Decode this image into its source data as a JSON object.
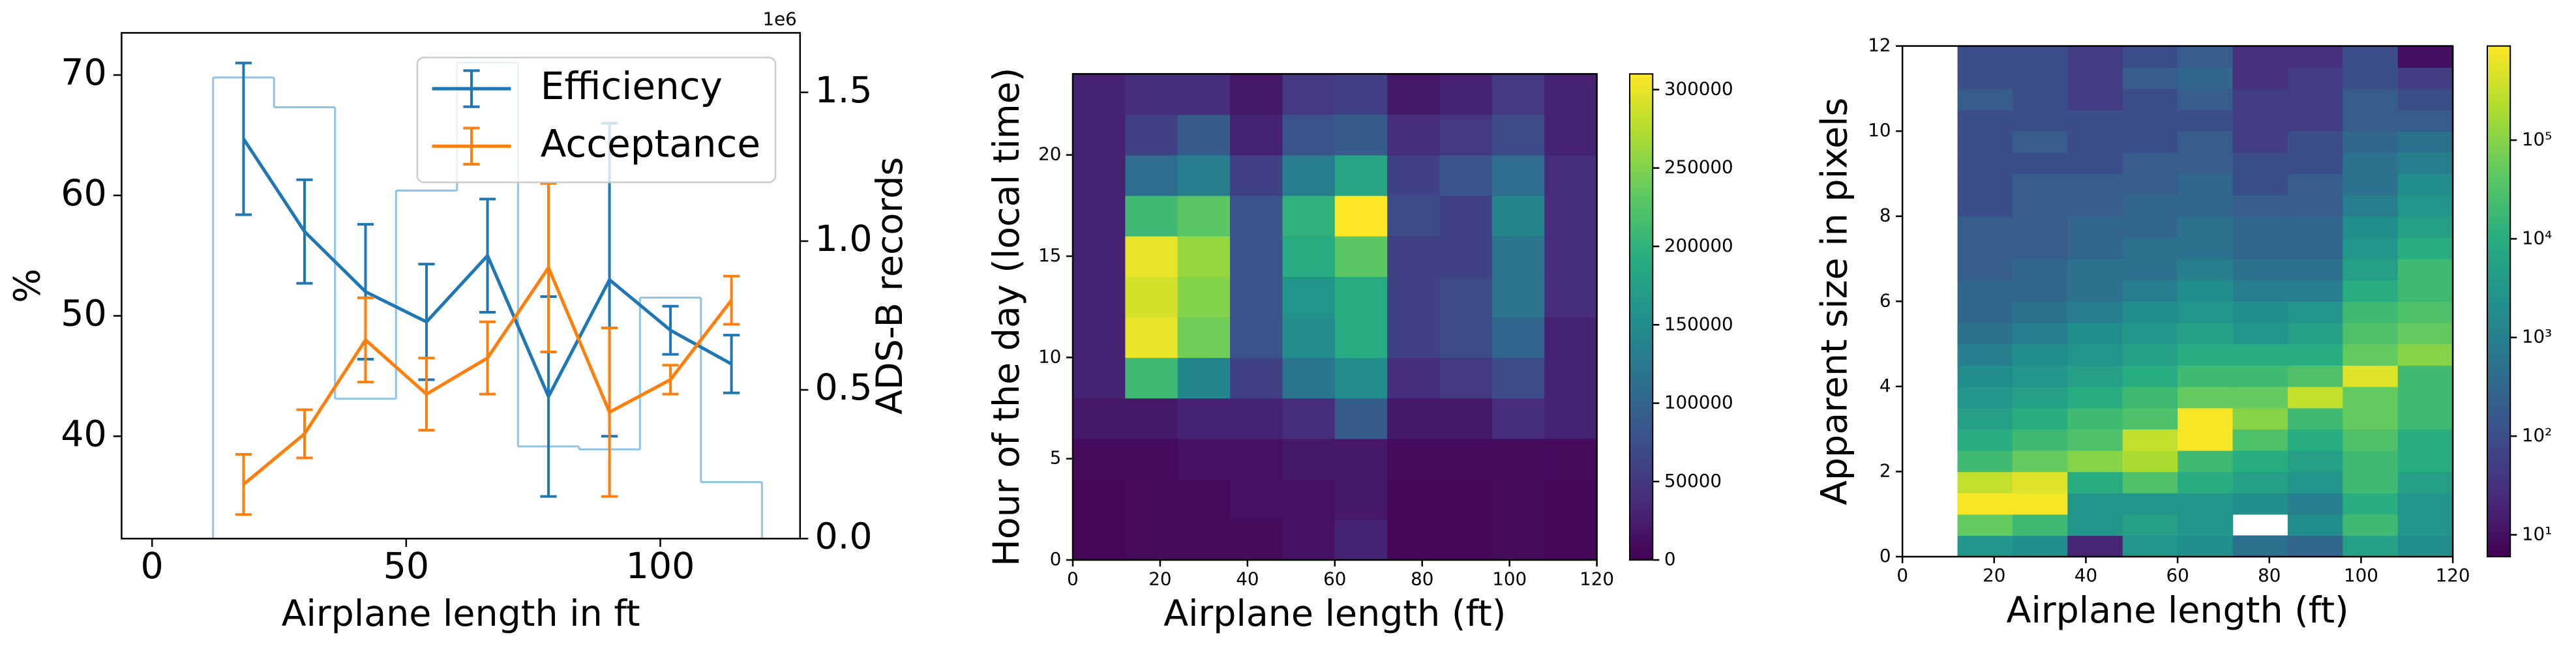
{
  "chart_data": [
    {
      "type": "errorbar-line",
      "xlabel": "Airplane length in ft",
      "ylabel": "%",
      "y2label": "ADS-B records",
      "y2_offset_label": "1e6",
      "xlim": [
        -6,
        127.5
      ],
      "ylim": [
        31.5,
        73.5
      ],
      "y2lim": [
        0,
        1.7
      ],
      "xticks": [
        0,
        50,
        100
      ],
      "yticks": [
        40,
        50,
        60,
        70
      ],
      "y2ticks": [
        {
          "value": 0,
          "label": "0.0"
        },
        {
          "value": 0.5,
          "label": "0.5"
        },
        {
          "value": 1,
          "label": "1.0"
        },
        {
          "value": 1.5,
          "label": "1.5"
        }
      ],
      "x": [
        18,
        30,
        42,
        54,
        66,
        78,
        90,
        102,
        114
      ],
      "series": [
        {
          "name": "Efficiency",
          "color": "#1f77b4",
          "values": [
            64.7,
            57,
            52,
            49.5,
            55,
            43.3,
            53,
            48.8,
            46
          ],
          "errors": [
            6.3,
            4.3,
            5.6,
            4.8,
            4.7,
            8.3,
            13,
            2,
            2.4
          ]
        },
        {
          "name": "Acceptance",
          "color": "#ff7f0e",
          "values": [
            36,
            40.2,
            48,
            43.5,
            46.5,
            54,
            42,
            44.7,
            51.3
          ],
          "errors": [
            2.5,
            2,
            3.5,
            3,
            3,
            7,
            7,
            1.2,
            2
          ]
        }
      ],
      "histogram": {
        "axis": "y2",
        "color": "#8fc3e6",
        "bins": [
          12,
          24,
          36,
          48,
          60,
          72,
          84,
          96,
          108,
          120
        ],
        "values": [
          1.55,
          1.45,
          0.47,
          1.17,
          1.6,
          0.31,
          0.3,
          0.81,
          0.19
        ]
      },
      "legend": "upper right"
    },
    {
      "type": "heatmap",
      "xlabel": "Airplane length (ft)",
      "ylabel": "Hour of the day (local time)",
      "xlim": [
        0,
        120
      ],
      "ylim": [
        0,
        24
      ],
      "xticks": [
        0,
        20,
        40,
        60,
        80,
        100,
        120
      ],
      "yticks": [
        0,
        5,
        10,
        15,
        20
      ],
      "xbins": [
        0,
        12,
        24,
        36,
        48,
        60,
        72,
        84,
        96,
        108,
        120
      ],
      "ybins": [
        0,
        2,
        4,
        6,
        8,
        10,
        12,
        14,
        16,
        18,
        20,
        22,
        24
      ],
      "colormap": "viridis",
      "colorbar": {
        "scale": "linear",
        "lim": [
          0,
          310000
        ],
        "ticks": [
          0,
          50000,
          100000,
          150000,
          200000,
          250000,
          300000
        ]
      },
      "z": [
        [
          5000,
          10000,
          10000,
          10000,
          15000,
          30000,
          5000,
          5000,
          10000,
          5000
        ],
        [
          5000,
          10000,
          10000,
          15000,
          15000,
          20000,
          5000,
          5000,
          10000,
          5000
        ],
        [
          10000,
          10000,
          15000,
          15000,
          20000,
          20000,
          10000,
          10000,
          10000,
          10000
        ],
        [
          20000,
          20000,
          30000,
          30000,
          40000,
          90000,
          20000,
          20000,
          40000,
          30000
        ],
        [
          30000,
          210000,
          140000,
          60000,
          120000,
          150000,
          40000,
          50000,
          70000,
          30000
        ],
        [
          30000,
          300000,
          240000,
          80000,
          150000,
          190000,
          60000,
          70000,
          100000,
          30000
        ],
        [
          30000,
          290000,
          250000,
          80000,
          160000,
          190000,
          60000,
          70000,
          120000,
          40000
        ],
        [
          30000,
          300000,
          260000,
          80000,
          190000,
          230000,
          60000,
          60000,
          120000,
          40000
        ],
        [
          30000,
          210000,
          230000,
          80000,
          200000,
          310000,
          70000,
          60000,
          140000,
          40000
        ],
        [
          30000,
          110000,
          130000,
          60000,
          130000,
          180000,
          60000,
          80000,
          110000,
          40000
        ],
        [
          30000,
          60000,
          90000,
          30000,
          80000,
          90000,
          40000,
          50000,
          70000,
          30000
        ],
        [
          30000,
          40000,
          40000,
          20000,
          50000,
          60000,
          20000,
          30000,
          50000,
          30000
        ]
      ]
    },
    {
      "type": "heatmap",
      "xlabel": "Airplane length (ft)",
      "ylabel": "Apparent size in pixels",
      "xlim": [
        0,
        120
      ],
      "ylim": [
        0,
        12
      ],
      "xticks": [
        0,
        20,
        40,
        60,
        80,
        100,
        120
      ],
      "yticks": [
        0,
        2,
        4,
        6,
        8,
        10,
        12
      ],
      "xbins": [
        0,
        12,
        24,
        36,
        48,
        60,
        72,
        84,
        96,
        108,
        120
      ],
      "ybins": [
        0,
        0.5,
        1,
        1.5,
        2,
        2.5,
        3,
        3.5,
        4,
        4.5,
        5,
        5.5,
        6,
        6.5,
        7,
        7.5,
        8,
        8.5,
        9,
        9.5,
        10,
        10.5,
        11,
        11.5,
        12
      ],
      "colormap": "viridis",
      "colorbar": {
        "scale": "log",
        "lim": [
          6,
          900000
        ],
        "ticks": [
          {
            "value": 10,
            "label": "10¹"
          },
          {
            "value": 100,
            "label": "10²"
          },
          {
            "value": 1000,
            "label": "10³"
          },
          {
            "value": 10000,
            "label": "10⁴"
          },
          {
            "value": 100000,
            "label": "10⁵"
          }
        ]
      },
      "z": [
        [
          null,
          3000,
          2000,
          20,
          3000,
          2000,
          500,
          300,
          5000,
          2000
        ],
        [
          null,
          50000,
          20000,
          3000,
          5000,
          3000,
          null,
          2000,
          20000,
          3000
        ],
        [
          null,
          800000,
          800000,
          3000,
          3000,
          3000,
          2000,
          1000,
          10000,
          3000
        ],
        [
          null,
          300000,
          500000,
          10000,
          30000,
          10000,
          5000,
          3000,
          20000,
          5000
        ],
        [
          null,
          20000,
          50000,
          100000,
          200000,
          20000,
          10000,
          5000,
          20000,
          10000
        ],
        [
          null,
          10000,
          20000,
          30000,
          300000,
          800000,
          30000,
          10000,
          30000,
          10000
        ],
        [
          null,
          5000,
          10000,
          20000,
          30000,
          800000,
          100000,
          20000,
          50000,
          20000
        ],
        [
          null,
          3000,
          5000,
          10000,
          20000,
          50000,
          50000,
          300000,
          50000,
          20000
        ],
        [
          null,
          2000,
          3000,
          5000,
          10000,
          20000,
          20000,
          30000,
          500000,
          20000
        ],
        [
          null,
          1000,
          2000,
          3000,
          5000,
          10000,
          10000,
          10000,
          50000,
          100000
        ],
        [
          null,
          500,
          1000,
          2000,
          3000,
          5000,
          3000,
          5000,
          30000,
          50000
        ],
        [
          null,
          300,
          500,
          1000,
          2000,
          3000,
          2000,
          3000,
          20000,
          30000
        ],
        [
          null,
          300,
          300,
          500,
          1000,
          2000,
          1000,
          1000,
          10000,
          20000
        ],
        [
          null,
          200,
          300,
          500,
          500,
          1000,
          500,
          500,
          5000,
          20000
        ],
        [
          null,
          200,
          200,
          300,
          500,
          500,
          300,
          300,
          3000,
          10000
        ],
        [
          null,
          200,
          200,
          300,
          300,
          500,
          300,
          300,
          2000,
          5000
        ],
        [
          null,
          100,
          200,
          200,
          300,
          300,
          200,
          200,
          1000,
          3000
        ],
        [
          null,
          100,
          200,
          200,
          200,
          300,
          100,
          200,
          500,
          2000
        ],
        [
          null,
          100,
          100,
          100,
          200,
          200,
          100,
          100,
          500,
          1000
        ],
        [
          null,
          100,
          200,
          100,
          100,
          200,
          50,
          100,
          300,
          500
        ],
        [
          null,
          100,
          100,
          100,
          100,
          100,
          50,
          50,
          200,
          200
        ],
        [
          null,
          200,
          100,
          50,
          100,
          200,
          50,
          50,
          200,
          100
        ],
        [
          null,
          100,
          100,
          50,
          200,
          300,
          30,
          50,
          100,
          50
        ],
        [
          null,
          100,
          100,
          50,
          100,
          200,
          30,
          30,
          100,
          10
        ]
      ]
    }
  ]
}
